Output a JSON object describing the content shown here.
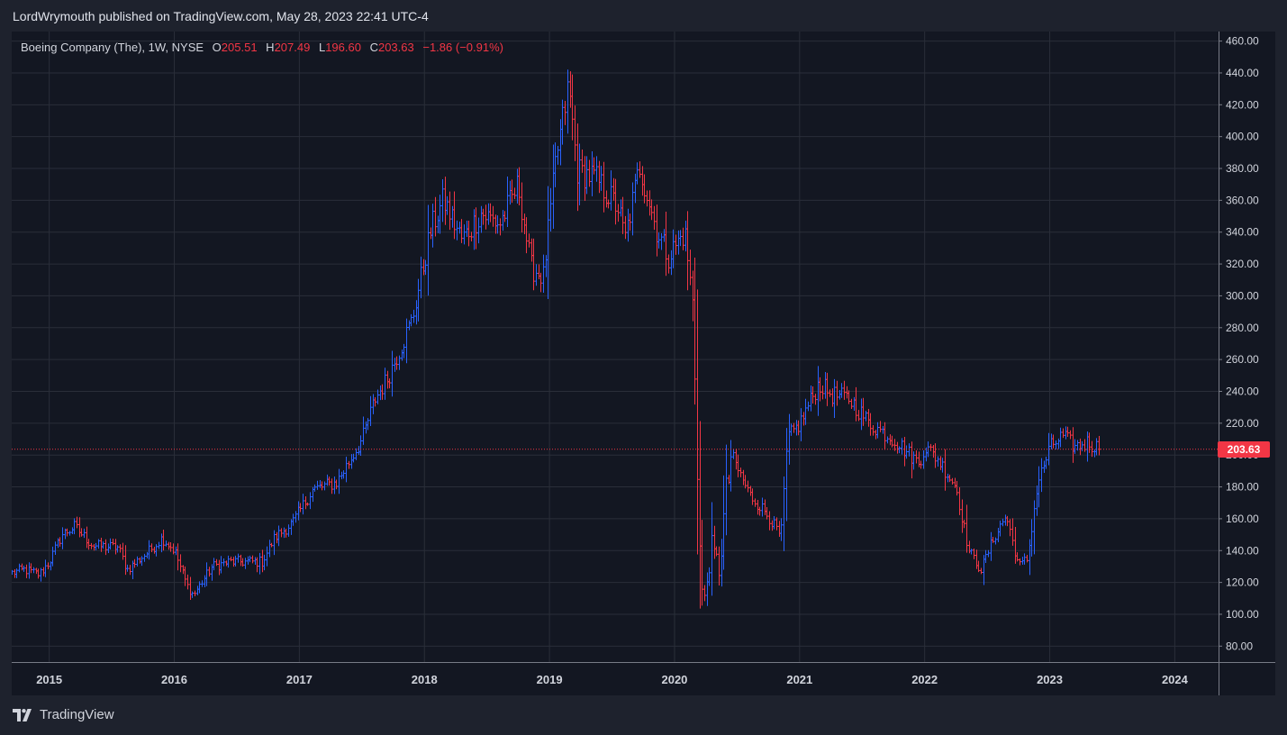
{
  "header": {
    "publisher_line": "LordWrymouth published on TradingView.com, May 28, 2023 22:41 UTC-4"
  },
  "legend": {
    "symbol": "Boeing Company (The), 1W, NYSE",
    "open_label": "O",
    "open": "205.51",
    "high_label": "H",
    "high": "207.49",
    "low_label": "L",
    "low": "196.60",
    "close_label": "C",
    "close": "203.63",
    "change": "−1.86 (−0.91%)"
  },
  "price_tag": "203.63",
  "footer": {
    "brand": "TradingView",
    "logo_icon": "tradingview-logo-icon"
  },
  "colors": {
    "background": "#1e222d",
    "pane": "#131722",
    "grid": "#2a2e39",
    "up": "#2962ff",
    "down": "#f23645",
    "axis_text": "#d1d4dc"
  },
  "chart_data": {
    "type": "ohlc-bar",
    "title": "Boeing Company (The), 1W, NYSE",
    "ylim": [
      70,
      466
    ],
    "y_ticks": [
      80,
      100,
      120,
      140,
      160,
      180,
      200,
      220,
      240,
      260,
      280,
      300,
      320,
      340,
      360,
      380,
      400,
      420,
      440,
      460
    ],
    "y_tick_labels": [
      "80.00",
      "100.00",
      "120.00",
      "140.00",
      "160.00",
      "180.00",
      "200.00",
      "220.00",
      "240.00",
      "260.00",
      "280.00",
      "300.00",
      "320.00",
      "340.00",
      "360.00",
      "380.00",
      "400.00",
      "420.00",
      "440.00",
      "460.00"
    ],
    "x_range": [
      2014.7,
      2024.35
    ],
    "x_ticks": [
      2015,
      2016,
      2017,
      2018,
      2019,
      2020,
      2021,
      2022,
      2023,
      2024
    ],
    "x_tick_labels": [
      "2015",
      "2016",
      "2017",
      "2018",
      "2019",
      "2020",
      "2021",
      "2022",
      "2023",
      "2024"
    ],
    "last_price": 203.63,
    "last_date": 2023.4,
    "start_date": 2014.7,
    "weekly_step": 0.01923,
    "anchors": [
      [
        2014.7,
        126
      ],
      [
        2014.8,
        128
      ],
      [
        2014.92,
        125
      ],
      [
        2015.0,
        133
      ],
      [
        2015.1,
        150
      ],
      [
        2015.2,
        155
      ],
      [
        2015.35,
        143
      ],
      [
        2015.55,
        142
      ],
      [
        2015.62,
        128
      ],
      [
        2015.8,
        140
      ],
      [
        2015.9,
        148
      ],
      [
        2016.0,
        140
      ],
      [
        2016.1,
        118
      ],
      [
        2016.15,
        112
      ],
      [
        2016.3,
        130
      ],
      [
        2016.45,
        133
      ],
      [
        2016.7,
        133
      ],
      [
        2016.8,
        148
      ],
      [
        2016.95,
        158
      ],
      [
        2017.1,
        178
      ],
      [
        2017.3,
        183
      ],
      [
        2017.5,
        210
      ],
      [
        2017.6,
        235
      ],
      [
        2017.7,
        248
      ],
      [
        2017.9,
        285
      ],
      [
        2018.05,
        342
      ],
      [
        2018.15,
        360
      ],
      [
        2018.3,
        335
      ],
      [
        2018.45,
        352
      ],
      [
        2018.6,
        345
      ],
      [
        2018.75,
        370
      ],
      [
        2018.85,
        318
      ],
      [
        2018.95,
        312
      ],
      [
        2019.05,
        385
      ],
      [
        2019.15,
        432
      ],
      [
        2019.22,
        378
      ],
      [
        2019.35,
        375
      ],
      [
        2019.55,
        355
      ],
      [
        2019.6,
        335
      ],
      [
        2019.72,
        382
      ],
      [
        2019.85,
        342
      ],
      [
        2019.95,
        325
      ],
      [
        2020.08,
        340
      ],
      [
        2020.15,
        290
      ],
      [
        2020.2,
        140
      ],
      [
        2020.23,
        100
      ],
      [
        2020.28,
        140
      ],
      [
        2020.35,
        128
      ],
      [
        2020.45,
        200
      ],
      [
        2020.6,
        175
      ],
      [
        2020.75,
        162
      ],
      [
        2020.85,
        148
      ],
      [
        2020.9,
        210
      ],
      [
        2021.0,
        220
      ],
      [
        2021.15,
        245
      ],
      [
        2021.25,
        238
      ],
      [
        2021.4,
        235
      ],
      [
        2021.55,
        220
      ],
      [
        2021.75,
        210
      ],
      [
        2021.95,
        195
      ],
      [
        2022.0,
        205
      ],
      [
        2022.1,
        198
      ],
      [
        2022.25,
        180
      ],
      [
        2022.35,
        140
      ],
      [
        2022.45,
        128
      ],
      [
        2022.55,
        148
      ],
      [
        2022.65,
        162
      ],
      [
        2022.75,
        130
      ],
      [
        2022.82,
        135
      ],
      [
        2022.9,
        182
      ],
      [
        2023.0,
        205
      ],
      [
        2023.1,
        212
      ],
      [
        2023.2,
        205
      ],
      [
        2023.3,
        208
      ],
      [
        2023.4,
        204
      ]
    ]
  }
}
